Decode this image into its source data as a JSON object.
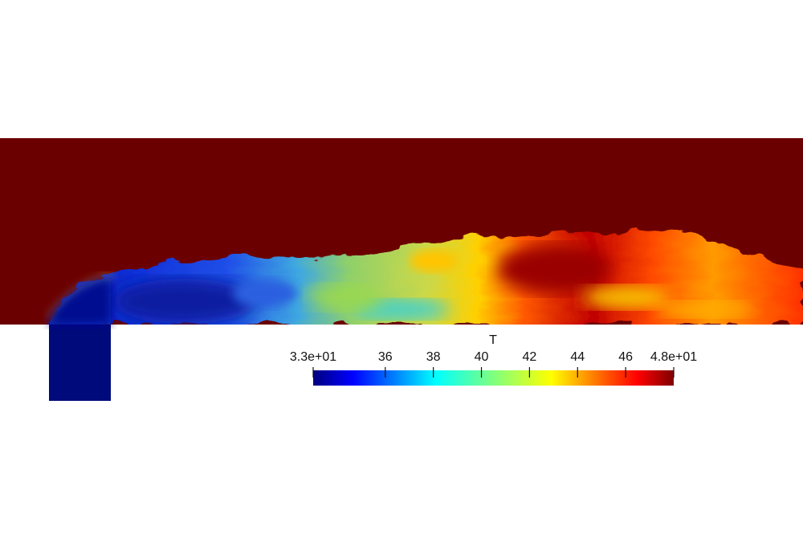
{
  "scalar_bar": {
    "title": "T",
    "ticks": [
      {
        "label": "3.3e+01",
        "value": 33
      },
      {
        "label": "36",
        "value": 36
      },
      {
        "label": "38",
        "value": 38
      },
      {
        "label": "40",
        "value": 40
      },
      {
        "label": "42",
        "value": 42
      },
      {
        "label": "44",
        "value": 44
      },
      {
        "label": "46",
        "value": 46
      },
      {
        "label": "4.8e+01",
        "value": 48
      }
    ],
    "range": [
      33,
      48
    ],
    "colormap": [
      "#00007f",
      "#0000ff",
      "#007fff",
      "#00ffff",
      "#7fff7f",
      "#ffff00",
      "#ff7f00",
      "#ff0000",
      "#7f0000"
    ]
  },
  "colors": {
    "hot": "#6b0000",
    "inlet": "#000a7a",
    "background": "#ffffff"
  }
}
